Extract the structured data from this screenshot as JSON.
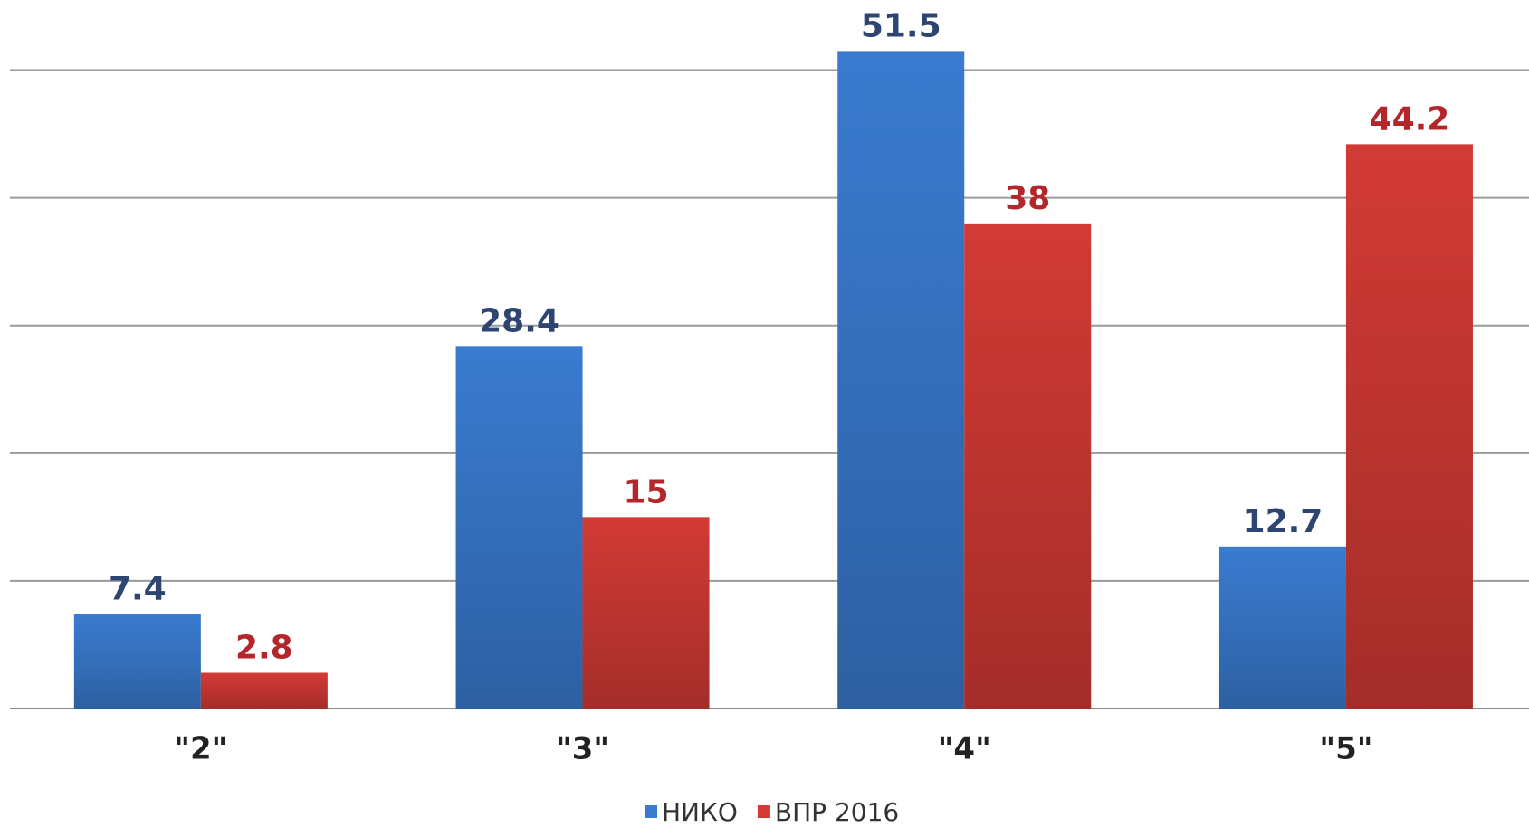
{
  "chart_data": {
    "type": "bar",
    "categories": [
      "\"2\"",
      "\"3\"",
      "\"4\"",
      "\"5\""
    ],
    "series": [
      {
        "name": "НИКО",
        "color": "#3a7bd0",
        "label_color": "#2d4570",
        "values": [
          7.4,
          28.4,
          51.5,
          12.7
        ]
      },
      {
        "name": "ВПР 2016",
        "color": "#d23a35",
        "label_color": "#b3262a",
        "values": [
          2.8,
          15,
          38,
          44.2
        ]
      }
    ],
    "ylim": [
      0,
      55
    ],
    "yticks": [
      0,
      10,
      20,
      30,
      40,
      50
    ],
    "grid": true,
    "legend": "bottom"
  }
}
